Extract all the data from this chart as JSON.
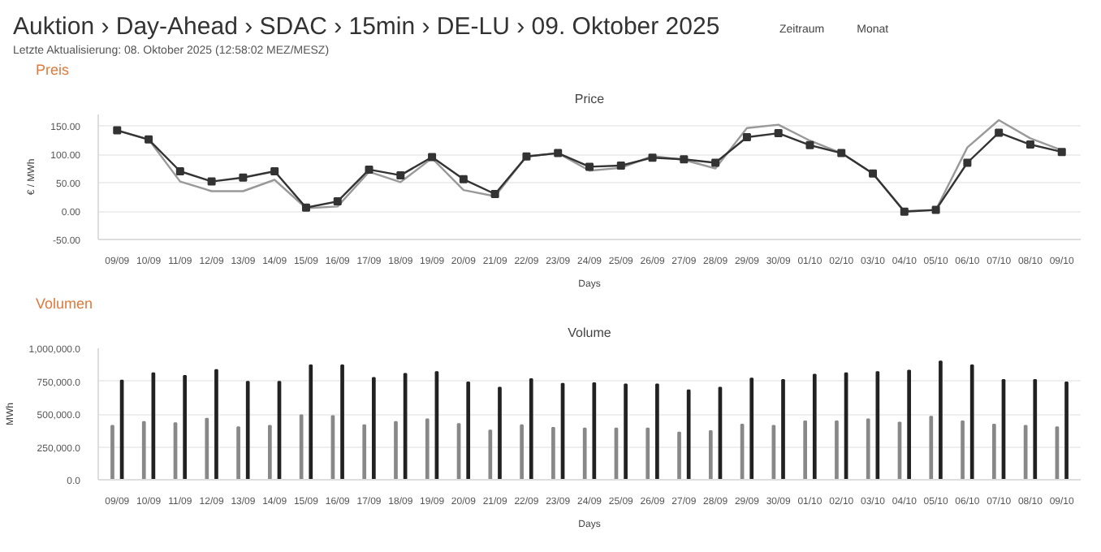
{
  "chart_data": [
    {
      "type": "other",
      "title": "Auktion › Day-Ahead › SDAC › 15min › DE-LU › 09. Oktober 2025",
      "subtitle": "Letzte Aktualisierung: 08. Oktober 2025 (12:58:02 MEZ/MESZ)",
      "annotations": [
        "Zeitraum",
        "Monat"
      ]
    },
    {
      "type": "line",
      "title": "Price",
      "xlabel": "Days",
      "ylabel": "€ / MWh",
      "annotations": [
        "Preis"
      ],
      "grid": "y",
      "categories": [
        "09/09",
        "10/09",
        "11/09",
        "12/09",
        "13/09",
        "14/09",
        "15/09",
        "16/09",
        "17/09",
        "18/09",
        "19/09",
        "20/09",
        "21/09",
        "22/09",
        "23/09",
        "24/09",
        "25/09",
        "26/09",
        "27/09",
        "28/09",
        "29/09",
        "30/09",
        "01/10",
        "02/10",
        "03/10",
        "04/10",
        "05/10",
        "06/10",
        "07/10",
        "08/10",
        "09/10"
      ],
      "ylim": [
        -50,
        170
      ],
      "yticks": [
        {
          "value": -50,
          "label": "-50.00"
        },
        {
          "value": 0,
          "label": "0.00"
        },
        {
          "value": 50,
          "label": "50.00"
        },
        {
          "value": 100,
          "label": "100.00"
        },
        {
          "value": 150,
          "label": "150.00"
        }
      ],
      "series": [
        {
          "color": "#999999",
          "marker": "none",
          "values": [
            142,
            126,
            52,
            35,
            35,
            55,
            5,
            8,
            69,
            51,
            93,
            37,
            26,
            96,
            102,
            71,
            76,
            97,
            90,
            75,
            146,
            152,
            124,
            102,
            66,
            0,
            2,
            112,
            160,
            128,
            107
          ]
        },
        {
          "color": "#333333",
          "marker": "square",
          "values": [
            142,
            126,
            70,
            52,
            59,
            70,
            6,
            17,
            73,
            63,
            95,
            56,
            30,
            96,
            102,
            78,
            80,
            94,
            91,
            85,
            130,
            137,
            116,
            102,
            66,
            -1,
            2,
            85,
            138,
            117,
            104
          ]
        }
      ]
    },
    {
      "type": "bar",
      "title": "Volume",
      "xlabel": "Days",
      "ylabel": "MWh",
      "annotations": [
        "Volumen"
      ],
      "grid": "y",
      "categories": [
        "09/09",
        "10/09",
        "11/09",
        "12/09",
        "13/09",
        "14/09",
        "15/09",
        "16/09",
        "17/09",
        "18/09",
        "19/09",
        "20/09",
        "21/09",
        "22/09",
        "23/09",
        "24/09",
        "25/09",
        "26/09",
        "27/09",
        "28/09",
        "29/09",
        "30/09",
        "01/10",
        "02/10",
        "03/10",
        "04/10",
        "05/10",
        "06/10",
        "07/10",
        "08/10",
        "09/10"
      ],
      "ylim": [
        0,
        1000000
      ],
      "yticks": [
        {
          "value": 0,
          "label": "0.0"
        },
        {
          "value": 250000,
          "label": "250,000.0"
        },
        {
          "value": 500000,
          "label": "500,000.0"
        },
        {
          "value": 750000,
          "label": "750,000.0"
        },
        {
          "value": 1000000,
          "label": "1,000,000.0"
        }
      ],
      "series": [
        {
          "color": "#888888",
          "values": [
            410000,
            440000,
            430000,
            465000,
            400000,
            410000,
            490000,
            485000,
            415000,
            440000,
            460000,
            425000,
            375000,
            415000,
            395000,
            390000,
            390000,
            390000,
            360000,
            370000,
            420000,
            410000,
            445000,
            445000,
            460000,
            435000,
            480000,
            445000,
            420000,
            410000,
            400000
          ]
        },
        {
          "color": "#222222",
          "values": [
            755000,
            810000,
            790000,
            835000,
            745000,
            745000,
            870000,
            870000,
            775000,
            805000,
            820000,
            740000,
            700000,
            765000,
            730000,
            735000,
            725000,
            725000,
            680000,
            700000,
            770000,
            760000,
            800000,
            810000,
            820000,
            830000,
            900000,
            870000,
            760000,
            760000,
            740000
          ]
        }
      ]
    }
  ]
}
